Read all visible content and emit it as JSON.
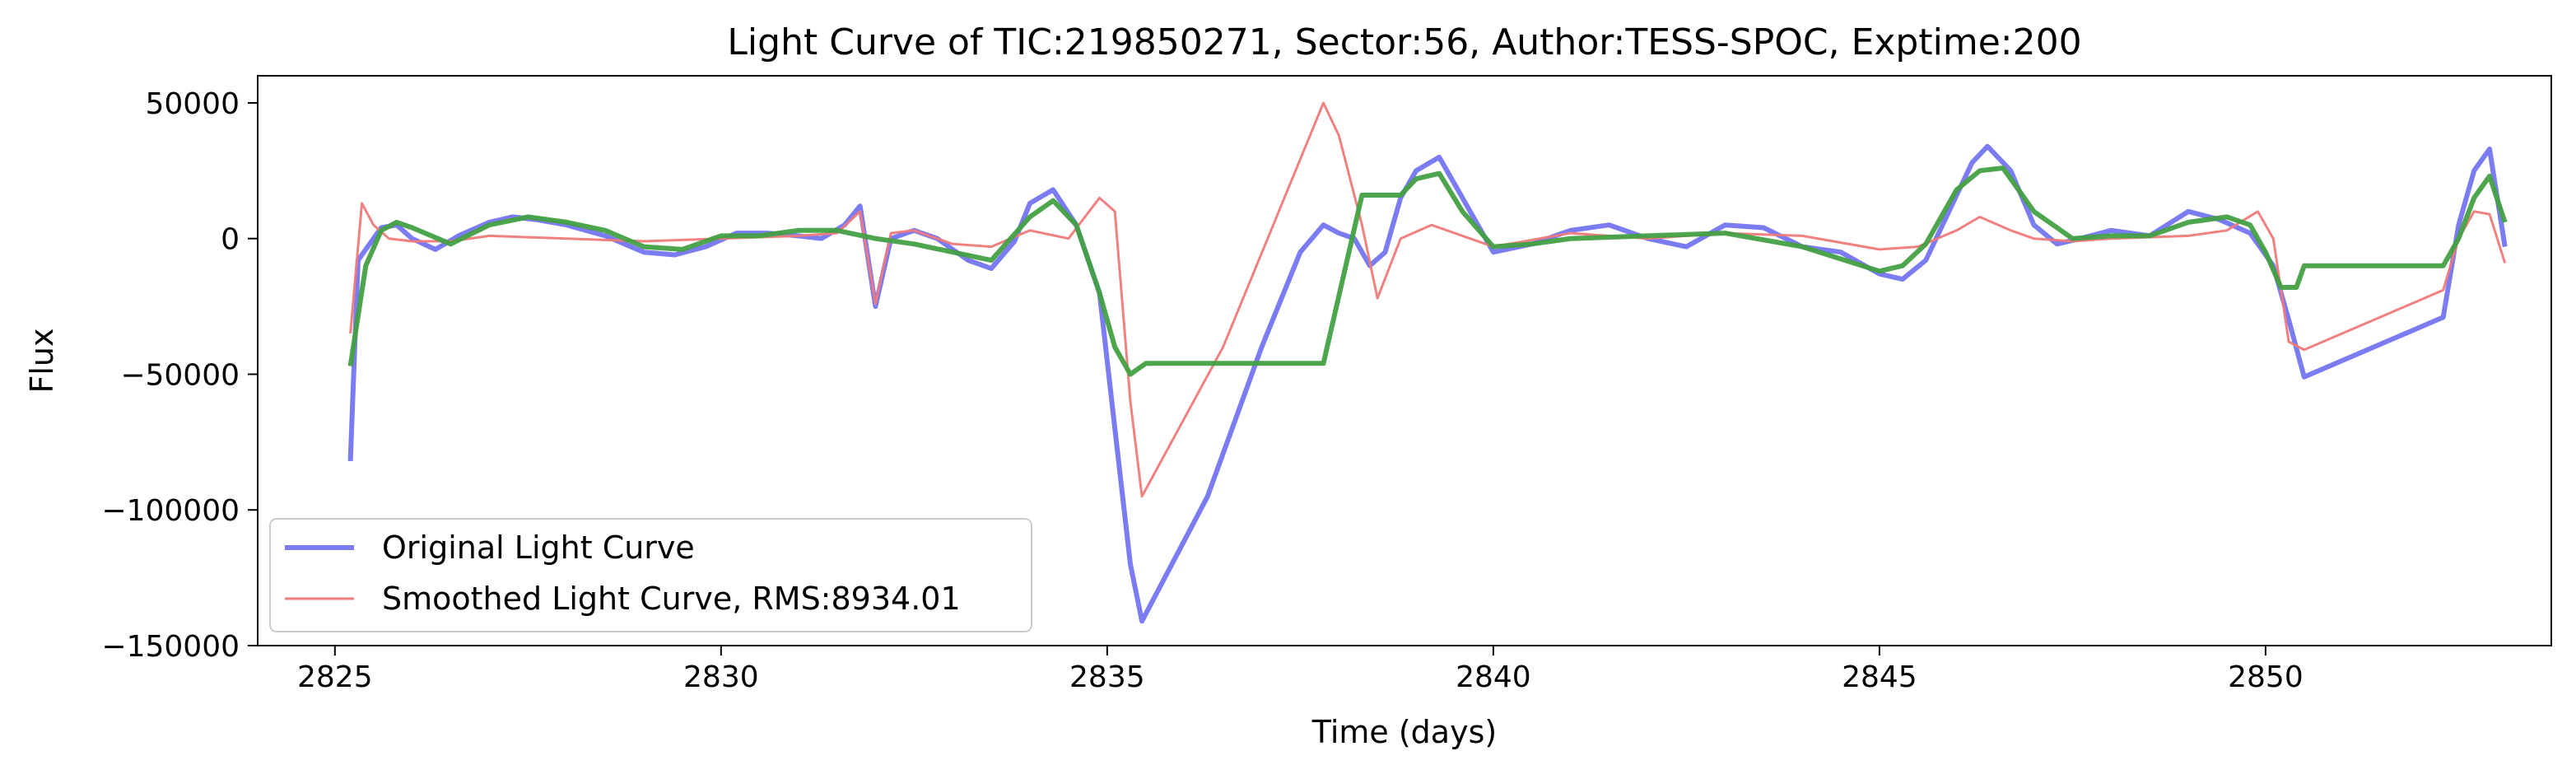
{
  "chart_data": {
    "type": "line",
    "title": "Light Curve of TIC:219850271, Sector:56, Author:TESS-SPOC, Exptime:200",
    "xlabel": "Time (days)",
    "ylabel": "Flux",
    "xlim": [
      2824.0,
      2853.7
    ],
    "ylim": [
      -150000,
      60000
    ],
    "xticks": [
      2825,
      2830,
      2835,
      2840,
      2845,
      2850
    ],
    "yticks": [
      50000,
      0,
      -50000,
      -100000,
      -150000
    ],
    "xtick_labels": [
      "2825",
      "2830",
      "2835",
      "2840",
      "2845",
      "2850"
    ],
    "ytick_labels": [
      "50000",
      "0",
      "−50000",
      "−100000",
      "−150000"
    ],
    "grid": false,
    "legend_position": "lower-left",
    "legend": [
      "Original Light Curve",
      "Smoothed Light Curve, RMS:8934.01"
    ],
    "series": [
      {
        "name": "Original Light Curve",
        "color": "#7b7bf2",
        "x": [
          2825.2,
          2825.3,
          2825.4,
          2825.6,
          2825.8,
          2826.0,
          2826.3,
          2826.6,
          2827.0,
          2827.3,
          2827.6,
          2828.0,
          2828.5,
          2829.0,
          2829.4,
          2829.8,
          2830.2,
          2830.6,
          2831.0,
          2831.3,
          2831.6,
          2831.8,
          2832.0,
          2832.2,
          2832.5,
          2832.8,
          2833.2,
          2833.5,
          2833.8,
          2834.0,
          2834.3,
          2834.6,
          2834.9,
          2835.1,
          2835.3,
          2835.45,
          2836.3,
          2837.0,
          2837.5,
          2837.8,
          2838.0,
          2838.2,
          2838.4,
          2838.6,
          2838.8,
          2839.0,
          2839.3,
          2839.6,
          2840.0,
          2840.5,
          2841.0,
          2841.5,
          2842.0,
          2842.5,
          2843.0,
          2843.5,
          2844.0,
          2844.5,
          2845.0,
          2845.3,
          2845.6,
          2845.9,
          2846.2,
          2846.4,
          2846.7,
          2847.0,
          2847.3,
          2847.6,
          2848.0,
          2848.5,
          2849.0,
          2849.4,
          2849.8,
          2850.1,
          2850.3,
          2850.5,
          2852.3,
          2852.5,
          2852.7,
          2852.9,
          2853.1
        ],
        "y": [
          -82000,
          -8000,
          -4000,
          4000,
          5000,
          0,
          -4000,
          1000,
          6000,
          8000,
          7000,
          5000,
          1000,
          -5000,
          -6000,
          -3000,
          2000,
          2000,
          1000,
          0,
          5000,
          12000,
          -25000,
          0,
          3000,
          0,
          -8000,
          -11000,
          -1000,
          13000,
          18000,
          5000,
          -20000,
          -70000,
          -120000,
          -141000,
          -95000,
          -40000,
          -5000,
          5000,
          2000,
          0,
          -10000,
          -5000,
          15000,
          25000,
          30000,
          15000,
          -5000,
          -2000,
          3000,
          5000,
          0,
          -3000,
          5000,
          4000,
          -3000,
          -5000,
          -13000,
          -15000,
          -8000,
          10000,
          28000,
          34000,
          25000,
          5000,
          -2000,
          0,
          3000,
          1000,
          10000,
          7000,
          2000,
          -10000,
          -30000,
          -51000,
          -29000,
          5000,
          25000,
          33000,
          -3000
        ]
      },
      {
        "name": "Smoothed Light Curve, RMS:8934.01",
        "color": "#f07a7a",
        "x": [
          2825.2,
          2825.35,
          2825.5,
          2825.7,
          2826.0,
          2826.5,
          2827.0,
          2828.0,
          2829.0,
          2830.0,
          2831.0,
          2831.5,
          2831.8,
          2832.0,
          2832.2,
          2832.5,
          2833.0,
          2833.5,
          2834.0,
          2834.5,
          2834.9,
          2835.1,
          2835.3,
          2835.45,
          2836.5,
          2837.8,
          2838.0,
          2838.3,
          2838.5,
          2838.8,
          2839.2,
          2840.0,
          2841.0,
          2842.0,
          2843.0,
          2844.0,
          2845.0,
          2845.5,
          2846.0,
          2846.3,
          2846.7,
          2847.0,
          2847.5,
          2848.0,
          2849.0,
          2849.5,
          2849.9,
          2850.1,
          2850.3,
          2850.5,
          2852.3,
          2852.5,
          2852.7,
          2852.9,
          2853.1
        ],
        "y": [
          -35000,
          13000,
          5000,
          0,
          -1000,
          -1000,
          1000,
          0,
          -1000,
          0,
          1000,
          2000,
          10000,
          -24000,
          2000,
          3000,
          -2000,
          -3000,
          3000,
          0,
          15000,
          10000,
          -60000,
          -95000,
          -40000,
          50000,
          38000,
          5000,
          -22000,
          0,
          5000,
          -3000,
          2000,
          0,
          2000,
          1000,
          -4000,
          -3000,
          3000,
          8000,
          3000,
          0,
          -1000,
          0,
          1000,
          3000,
          10000,
          0,
          -38000,
          -41000,
          -19000,
          0,
          10000,
          9000,
          -9000
        ]
      },
      {
        "name": "",
        "color": "#43a043",
        "x": [
          2825.2,
          2825.4,
          2825.6,
          2825.8,
          2826.0,
          2826.5,
          2827.0,
          2827.5,
          2828.0,
          2828.5,
          2829.0,
          2829.5,
          2830.0,
          2830.5,
          2831.0,
          2831.5,
          2832.0,
          2832.5,
          2833.0,
          2833.5,
          2834.0,
          2834.3,
          2834.6,
          2834.9,
          2835.1,
          2835.3,
          2835.5,
          2837.8,
          2838.3,
          2838.8,
          2839.0,
          2839.3,
          2839.6,
          2840.0,
          2840.5,
          2841.0,
          2842.0,
          2843.0,
          2844.0,
          2845.0,
          2845.3,
          2845.6,
          2846.0,
          2846.3,
          2846.6,
          2847.0,
          2847.5,
          2848.0,
          2848.5,
          2849.0,
          2849.5,
          2849.8,
          2850.0,
          2850.2,
          2850.4,
          2850.5,
          2852.3,
          2852.5,
          2852.7,
          2852.9,
          2853.1
        ],
        "y": [
          -47000,
          -10000,
          3000,
          6000,
          4000,
          -2000,
          5000,
          8000,
          6000,
          3000,
          -3000,
          -4000,
          1000,
          1000,
          3000,
          3000,
          0,
          -2000,
          -5000,
          -8000,
          8000,
          14000,
          5000,
          -20000,
          -40000,
          -50000,
          -46000,
          -46000,
          16000,
          16000,
          22000,
          24000,
          10000,
          -3000,
          -2000,
          0,
          1000,
          2000,
          -3000,
          -12000,
          -10000,
          -2000,
          18000,
          25000,
          26000,
          10000,
          0,
          1000,
          1000,
          6000,
          8000,
          5000,
          -5000,
          -18000,
          -18000,
          -10000,
          -10000,
          0,
          15000,
          23000,
          6000
        ]
      }
    ]
  }
}
